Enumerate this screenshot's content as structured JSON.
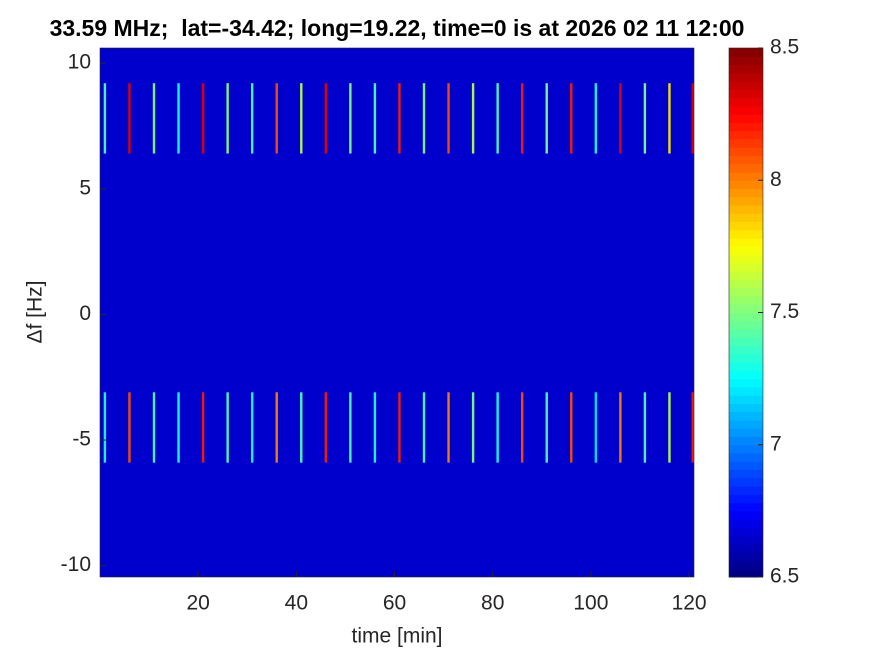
{
  "chart_data": {
    "type": "heatmap",
    "title": "33.59 MHz;  lat=-34.42; long=19.22, time=0 is at 2026 02 11 12:00",
    "x_label": "time [min]",
    "y_label": "Δf [Hz]",
    "xlim": [
      0,
      121
    ],
    "ylim": [
      -10.45,
      10.6
    ],
    "xticks": [
      20,
      40,
      60,
      80,
      100,
      120
    ],
    "yticks": [
      -10,
      -5,
      0,
      5,
      10
    ],
    "colormap": "jet",
    "clim": [
      6.5,
      8.5
    ],
    "cticks": [
      6.5,
      7,
      7.5,
      8,
      8.5
    ],
    "background": 6.65,
    "x": [
      1,
      6,
      11,
      16,
      21,
      26,
      31,
      36,
      41,
      46,
      51,
      56,
      61,
      66,
      71,
      76,
      81,
      86,
      91,
      96,
      101,
      106,
      111,
      116,
      121
    ],
    "series": [
      {
        "y": 7.8,
        "values": [
          7.4,
          8.3,
          7.5,
          7.3,
          8.3,
          7.5,
          7.4,
          8.1,
          7.6,
          8.3,
          7.5,
          7.4,
          8.2,
          7.5,
          8.1,
          7.6,
          7.4,
          8.2,
          7.5,
          8.2,
          7.3,
          8.3,
          7.5,
          7.8,
          8.3
        ]
      },
      {
        "y": -4.5,
        "values": [
          7.3,
          8.1,
          7.4,
          7.3,
          8.2,
          7.4,
          7.3,
          8.0,
          7.4,
          8.2,
          7.4,
          7.3,
          8.2,
          7.4,
          8.0,
          7.5,
          7.3,
          8.1,
          7.4,
          8.1,
          7.2,
          8.0,
          7.4,
          7.6,
          8.2
        ]
      }
    ]
  }
}
